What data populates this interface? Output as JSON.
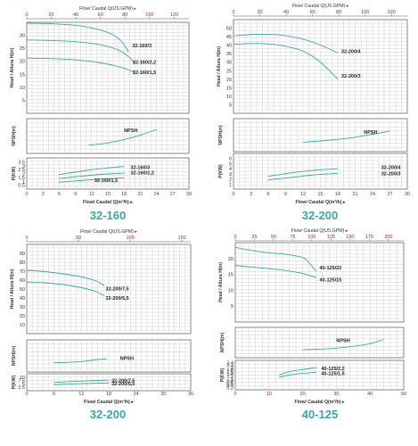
{
  "chart_data": [
    {
      "type": "line",
      "title": "32-160",
      "top_axis_label": "Flow/ Caudal Q(US.GPM)",
      "top_axis": {
        "lim": [
          0,
          132
        ],
        "ticks": [
          0,
          20,
          40,
          60,
          80,
          100,
          120
        ]
      },
      "xlabel": "Flow/ Caudal Q(m³/h)",
      "xlim": [
        0,
        30
      ],
      "xticks": [
        0,
        3,
        6,
        9,
        12,
        15,
        18,
        21,
        24,
        27,
        30
      ],
      "head": {
        "ylabel": "Head / Altura H(m)",
        "ylim": [
          0,
          35
        ],
        "yticks": [
          5,
          10,
          15,
          20,
          25,
          30
        ],
        "series": [
          {
            "name": "32-160/3",
            "x": [
              0,
              6,
              10,
              14,
              16.5,
              18,
              18.8
            ],
            "y": [
              34.7,
              34.3,
              33.6,
              31.8,
              29.5,
              26.5,
              23.5
            ]
          },
          {
            "name": "32-160/2,2",
            "x": [
              0,
              5,
              10,
              14,
              17,
              19,
              20
            ],
            "y": [
              28.2,
              28,
              27.4,
              26.2,
              24.3,
              21.5,
              19
            ]
          },
          {
            "name": "32-160/1,5",
            "x": [
              0,
              5,
              10,
              14,
              17,
              19,
              20
            ],
            "y": [
              21.2,
              21,
              20.4,
              19.3,
              17.9,
              16.6,
              15.5
            ]
          }
        ]
      },
      "npsh": {
        "ylabel": "NPSH(m)",
        "ylim": [
          0,
          8
        ],
        "series": [
          {
            "name": "NPSH",
            "x": [
              11.5,
              15,
              18,
              21,
              24
            ],
            "y": [
              1.9,
              2.4,
              3.2,
              4.2,
              5.5
            ]
          }
        ]
      },
      "power": {
        "ylabel": "P(KW)",
        "ylim": [
          0,
          4
        ],
        "yticks": [
          0.5,
          1,
          1.5,
          2,
          2.5,
          3,
          3.5
        ],
        "series": [
          {
            "name": "32-160/3",
            "x": [
              6,
              10,
              14,
              18
            ],
            "y": [
              1.85,
              2.3,
              2.65,
              2.9
            ]
          },
          {
            "name": "32-160/2,2",
            "x": [
              6,
              10,
              14,
              18
            ],
            "y": [
              1.35,
              1.65,
              1.9,
              2.05
            ]
          },
          {
            "name": "32-160/1,5",
            "x": [
              6,
              10,
              14,
              18
            ],
            "y": [
              0.9,
              1.1,
              1.3,
              1.45
            ]
          }
        ]
      }
    },
    {
      "type": "line",
      "title": "32-200",
      "top_axis_label": "Flow/ Caudal Q(US.GPM)",
      "top_axis": {
        "lim": [
          0,
          132
        ],
        "ticks": [
          0,
          20,
          40,
          60,
          80,
          100,
          120
        ]
      },
      "xlabel": "Flow/ Caudal Q(m³/h)",
      "xlim": [
        0,
        30
      ],
      "xticks": [
        0,
        3,
        6,
        9,
        12,
        15,
        18,
        21,
        24,
        27,
        30
      ],
      "head": {
        "ylabel": "Head / Altura H(m)",
        "ylim": [
          0,
          55
        ],
        "yticks": [
          5,
          10,
          15,
          20,
          25,
          30,
          35,
          40,
          45,
          50
        ],
        "series": [
          {
            "name": "32-200/4",
            "x": [
              0,
              4,
              8,
              12,
              15,
              18
            ],
            "y": [
              45.5,
              46.3,
              46,
              43.5,
              40,
              35.5
            ]
          },
          {
            "name": "32-200/3",
            "x": [
              0,
              4,
              8,
              12,
              15,
              18
            ],
            "y": [
              40.5,
              41,
              40,
              36.5,
              30,
              20
            ]
          }
        ]
      },
      "npsh": {
        "ylabel": "NPSH(m)",
        "ylim": [
          0,
          8
        ],
        "series": [
          {
            "name": "NPSH",
            "x": [
              12,
              16,
              20,
              24,
              27
            ],
            "y": [
              2.3,
              2.7,
              3.3,
              4.2,
              5
            ]
          }
        ]
      },
      "power": {
        "ylabel": "P(KW)",
        "ylim": [
          0,
          7
        ],
        "yticks": [
          1,
          2,
          3,
          4,
          5,
          6
        ],
        "series": [
          {
            "name": "32-200/4",
            "x": [
              6,
              10,
              14,
              18
            ],
            "y": [
              2.5,
              3.2,
              3.7,
              4
            ]
          },
          {
            "name": "32-200/3",
            "x": [
              6,
              10,
              14,
              18
            ],
            "y": [
              1.8,
              2.3,
              2.8,
              3.1
            ]
          }
        ]
      }
    },
    {
      "type": "line",
      "title": "32-200",
      "top_axis_label": "Flow/ Caudal Q(US.GPM)",
      "top_axis": {
        "lim": [
          0,
          158.5
        ],
        "ticks": [
          0,
          50,
          100,
          150
        ]
      },
      "xlabel": "Flow/ Caudal Q(m³/h)",
      "xlim": [
        0,
        36
      ],
      "xticks": [
        0,
        6,
        12,
        18,
        24,
        30,
        36
      ],
      "head": {
        "ylabel": "Head / Altura H(m)",
        "ylim": [
          0,
          100
        ],
        "yticks": [
          10,
          20,
          30,
          40,
          50,
          60,
          70,
          80,
          90
        ],
        "series": [
          {
            "name": "32-200/7,5",
            "x": [
              0,
              4,
              8,
              12,
              15,
              17
            ],
            "y": [
              71,
              69.5,
              67,
              63.5,
              59.5,
              54
            ]
          },
          {
            "name": "32-200/5,5",
            "x": [
              0,
              4,
              8,
              12,
              15,
              17
            ],
            "y": [
              58,
              57,
              55,
              51.5,
              47.5,
              42.5
            ]
          }
        ]
      },
      "npsh": {
        "ylabel": "NPSH(m)",
        "ylim": [
          0,
          8
        ],
        "series": [
          {
            "name": "NPSH",
            "x": [
              6,
              9,
              12,
              15,
              17.5
            ],
            "y": [
              2.3,
              2.4,
              2.6,
              3,
              3.3
            ]
          }
        ]
      },
      "power": {
        "ylabel": "P(KW)",
        "ylim": [
          0,
          12.5
        ],
        "yticks": [
          2.5,
          5,
          7.5,
          10
        ],
        "series": [
          {
            "name": "32-200/7,5",
            "x": [
              6,
              10,
              14,
              18
            ],
            "y": [
              6,
              6.8,
              7.4,
              7.8
            ]
          },
          {
            "name": "32-200/5,5",
            "x": [
              6,
              10,
              14,
              18
            ],
            "y": [
              4.3,
              5,
              5.4,
              5.7
            ]
          }
        ]
      }
    },
    {
      "type": "line",
      "title": "40-125",
      "top_axis_label": "Flow/ Caudal Q(US.GPM)",
      "top_axis": {
        "lim": [
          0,
          220
        ],
        "ticks": [
          0,
          25,
          50,
          75,
          100,
          125,
          150,
          175,
          200
        ]
      },
      "xlabel": "Flow/ Caudal Q(m³/h)",
      "xlim": [
        0,
        50
      ],
      "xticks": [
        0,
        10,
        20,
        30,
        40,
        50
      ],
      "head": {
        "ylabel": "Head / Altura H(m)",
        "ylim": [
          0,
          25
        ],
        "yticks": [
          5,
          10,
          15,
          20
        ],
        "series": [
          {
            "name": "40-125/22",
            "x": [
              0,
              5,
              10,
              15,
              20,
              22,
              24
            ],
            "y": [
              23.5,
              22.5,
              21.8,
              21.3,
              20.3,
              18.5,
              16
            ]
          },
          {
            "name": "40-125/15",
            "x": [
              0,
              5,
              10,
              15,
              20,
              24
            ],
            "y": [
              17.8,
              17.3,
              16.8,
              16.2,
              15.3,
              14
            ]
          }
        ]
      },
      "npsh": {
        "ylabel": "NPSH(m)",
        "ylim": [
          0,
          8
        ],
        "series": [
          {
            "name": "NPSH",
            "x": [
              20,
              28,
              34,
              40,
              44
            ],
            "y": [
              2.1,
              2.4,
              2.9,
              3.7,
              4.8
            ]
          }
        ]
      },
      "power": {
        "ylabel": "P(KW)",
        "ylim": [
          0,
          2.6
        ],
        "yticks": [
          0.2,
          0.4,
          0.6,
          0.8,
          1,
          1.2,
          1.4,
          1.6,
          1.8,
          2,
          2.2,
          2.4
        ],
        "series": [
          {
            "name": "40-125/2,2",
            "x": [
              13,
              16,
              20,
              24
            ],
            "y": [
              1.3,
              1.6,
              1.8,
              1.95
            ]
          },
          {
            "name": "40-125/1,5",
            "x": [
              13,
              16,
              20,
              24
            ],
            "y": [
              1.1,
              1.3,
              1.45,
              1.55
            ]
          }
        ]
      }
    }
  ]
}
